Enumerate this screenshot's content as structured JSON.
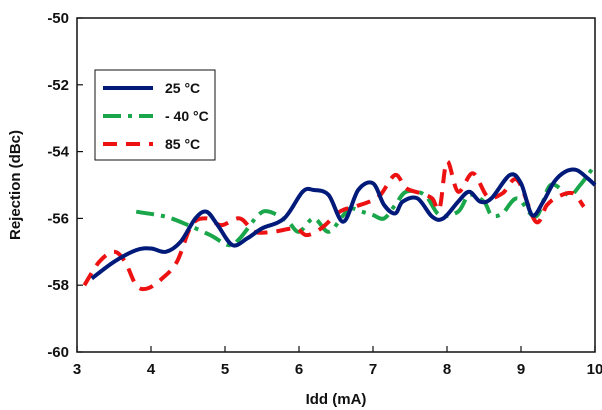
{
  "chart_data": {
    "type": "line",
    "title": "",
    "xlabel": "Idd (mA)",
    "ylabel": "Rejection (dBc)",
    "xlim": [
      3,
      10
    ],
    "ylim": [
      -60,
      -50
    ],
    "xticks": [
      3,
      4,
      5,
      6,
      7,
      8,
      9,
      10
    ],
    "yticks": [
      -50,
      -52,
      -54,
      -56,
      -58,
      -60
    ],
    "grid": false,
    "legend_position": "upper-left",
    "series": [
      {
        "name": "25 °C",
        "color": "#001a7a",
        "dash": "solid",
        "points": [
          [
            3.2,
            -57.8
          ],
          [
            3.5,
            -57.3
          ],
          [
            3.8,
            -56.95
          ],
          [
            4.0,
            -56.9
          ],
          [
            4.2,
            -57.0
          ],
          [
            4.4,
            -56.7
          ],
          [
            4.6,
            -56.0
          ],
          [
            4.75,
            -55.8
          ],
          [
            4.9,
            -56.2
          ],
          [
            5.1,
            -56.8
          ],
          [
            5.3,
            -56.6
          ],
          [
            5.5,
            -56.3
          ],
          [
            5.8,
            -56.0
          ],
          [
            6.05,
            -55.2
          ],
          [
            6.2,
            -55.15
          ],
          [
            6.4,
            -55.3
          ],
          [
            6.6,
            -56.1
          ],
          [
            6.8,
            -55.15
          ],
          [
            7.0,
            -54.95
          ],
          [
            7.15,
            -55.6
          ],
          [
            7.3,
            -55.85
          ],
          [
            7.4,
            -55.5
          ],
          [
            7.6,
            -55.4
          ],
          [
            7.8,
            -55.95
          ],
          [
            7.95,
            -56.0
          ],
          [
            8.15,
            -55.5
          ],
          [
            8.3,
            -55.2
          ],
          [
            8.45,
            -55.5
          ],
          [
            8.6,
            -55.4
          ],
          [
            8.85,
            -54.7
          ],
          [
            9.0,
            -54.95
          ],
          [
            9.15,
            -55.9
          ],
          [
            9.3,
            -55.5
          ],
          [
            9.45,
            -54.9
          ],
          [
            9.6,
            -54.6
          ],
          [
            9.75,
            -54.55
          ],
          [
            9.9,
            -54.8
          ],
          [
            10.0,
            -55.0
          ]
        ]
      },
      {
        "name": "- 40 °C",
        "color": "#1aa64a",
        "dash": "dashdot",
        "points": [
          [
            3.8,
            -55.8
          ],
          [
            4.2,
            -55.95
          ],
          [
            4.5,
            -56.2
          ],
          [
            4.8,
            -56.5
          ],
          [
            5.05,
            -56.8
          ],
          [
            5.2,
            -56.6
          ],
          [
            5.45,
            -55.9
          ],
          [
            5.6,
            -55.8
          ],
          [
            5.85,
            -56.1
          ],
          [
            6.0,
            -56.4
          ],
          [
            6.2,
            -56.0
          ],
          [
            6.4,
            -56.4
          ],
          [
            6.6,
            -55.9
          ],
          [
            6.7,
            -55.7
          ],
          [
            6.85,
            -55.8
          ],
          [
            7.0,
            -55.9
          ],
          [
            7.15,
            -56.0
          ],
          [
            7.3,
            -55.6
          ],
          [
            7.45,
            -55.2
          ],
          [
            7.7,
            -55.3
          ],
          [
            7.9,
            -55.9
          ],
          [
            8.15,
            -55.8
          ],
          [
            8.3,
            -55.3
          ],
          [
            8.5,
            -55.5
          ],
          [
            8.6,
            -55.9
          ],
          [
            8.75,
            -55.85
          ],
          [
            8.95,
            -55.4
          ],
          [
            9.2,
            -55.95
          ],
          [
            9.4,
            -55.0
          ],
          [
            9.65,
            -55.3
          ],
          [
            9.8,
            -55.0
          ],
          [
            10.0,
            -54.4
          ]
        ]
      },
      {
        "name": "85 °C",
        "color": "#ee1111",
        "dash": "dashed",
        "points": [
          [
            3.1,
            -58.0
          ],
          [
            3.3,
            -57.3
          ],
          [
            3.5,
            -57.0
          ],
          [
            3.65,
            -57.3
          ],
          [
            3.8,
            -58.0
          ],
          [
            3.95,
            -58.1
          ],
          [
            4.15,
            -57.8
          ],
          [
            4.35,
            -57.3
          ],
          [
            4.55,
            -56.2
          ],
          [
            4.75,
            -56.0
          ],
          [
            4.95,
            -56.2
          ],
          [
            5.2,
            -56.0
          ],
          [
            5.4,
            -56.4
          ],
          [
            5.65,
            -56.4
          ],
          [
            5.95,
            -56.3
          ],
          [
            6.1,
            -56.5
          ],
          [
            6.3,
            -56.3
          ],
          [
            6.55,
            -55.8
          ],
          [
            6.75,
            -55.65
          ],
          [
            6.95,
            -55.5
          ],
          [
            7.1,
            -55.3
          ],
          [
            7.3,
            -54.7
          ],
          [
            7.45,
            -55.1
          ],
          [
            7.65,
            -55.25
          ],
          [
            7.8,
            -55.4
          ],
          [
            7.9,
            -55.7
          ],
          [
            8.0,
            -54.3
          ],
          [
            8.15,
            -55.2
          ],
          [
            8.35,
            -54.65
          ],
          [
            8.55,
            -55.35
          ],
          [
            8.75,
            -55.25
          ],
          [
            8.95,
            -54.85
          ],
          [
            9.2,
            -56.1
          ],
          [
            9.35,
            -55.6
          ],
          [
            9.5,
            -55.35
          ],
          [
            9.7,
            -55.25
          ],
          [
            9.85,
            -55.65
          ]
        ]
      }
    ]
  }
}
